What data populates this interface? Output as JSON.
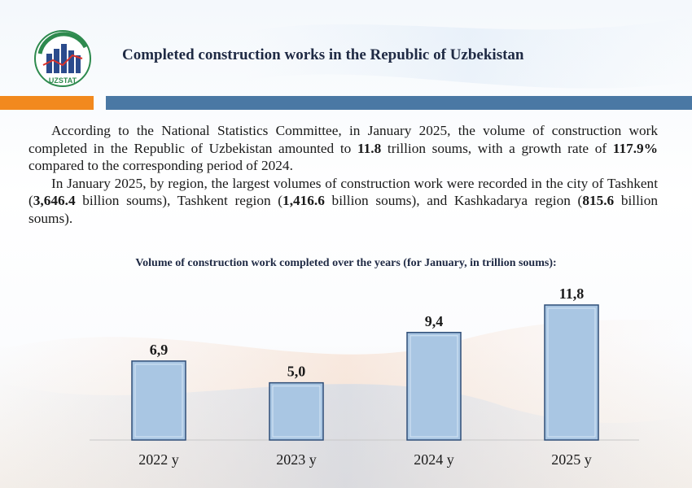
{
  "header": {
    "logo_text": "UZSTAT",
    "title": "Completed construction works in the Republic of Uzbekistan"
  },
  "paragraph1": {
    "part1": "According to the National Statistics Committee, in January 2025, the volume of construction work completed in the Republic of Uzbekistan amounted to ",
    "value1": "11.8",
    "part2": " trillion soums, with a growth rate of ",
    "value2": "117.9%",
    "part3": " compared to the corresponding period of 2024."
  },
  "paragraph2": {
    "part1": "In January 2025, by region, the largest volumes of construction work were recorded in the city of Tashkent (",
    "value1": "3,646.4",
    "part2": " billion soums), Tashkent region (",
    "value2": "1,416.6",
    "part3": " billion soums), and Kashkadarya region (",
    "value3": "815.6",
    "part4": " billion soums)."
  },
  "colors": {
    "accent_orange": "#f2891e",
    "accent_blue": "#4a78a4",
    "bar_fill": "#a9c6e3",
    "bar_stroke": "#2f4e78"
  },
  "chart_data": {
    "type": "bar",
    "title": "Volume of construction work completed over the years (for January, in trillion soums):",
    "categories": [
      "2022 y",
      "2023 y",
      "2024 y",
      "2025 y"
    ],
    "values": [
      6.9,
      5.0,
      9.4,
      11.8
    ],
    "data_labels": [
      "6,9",
      "5,0",
      "9,4",
      "11,8"
    ],
    "ylim": [
      0,
      11.8
    ],
    "grid": false,
    "legend": "none"
  }
}
